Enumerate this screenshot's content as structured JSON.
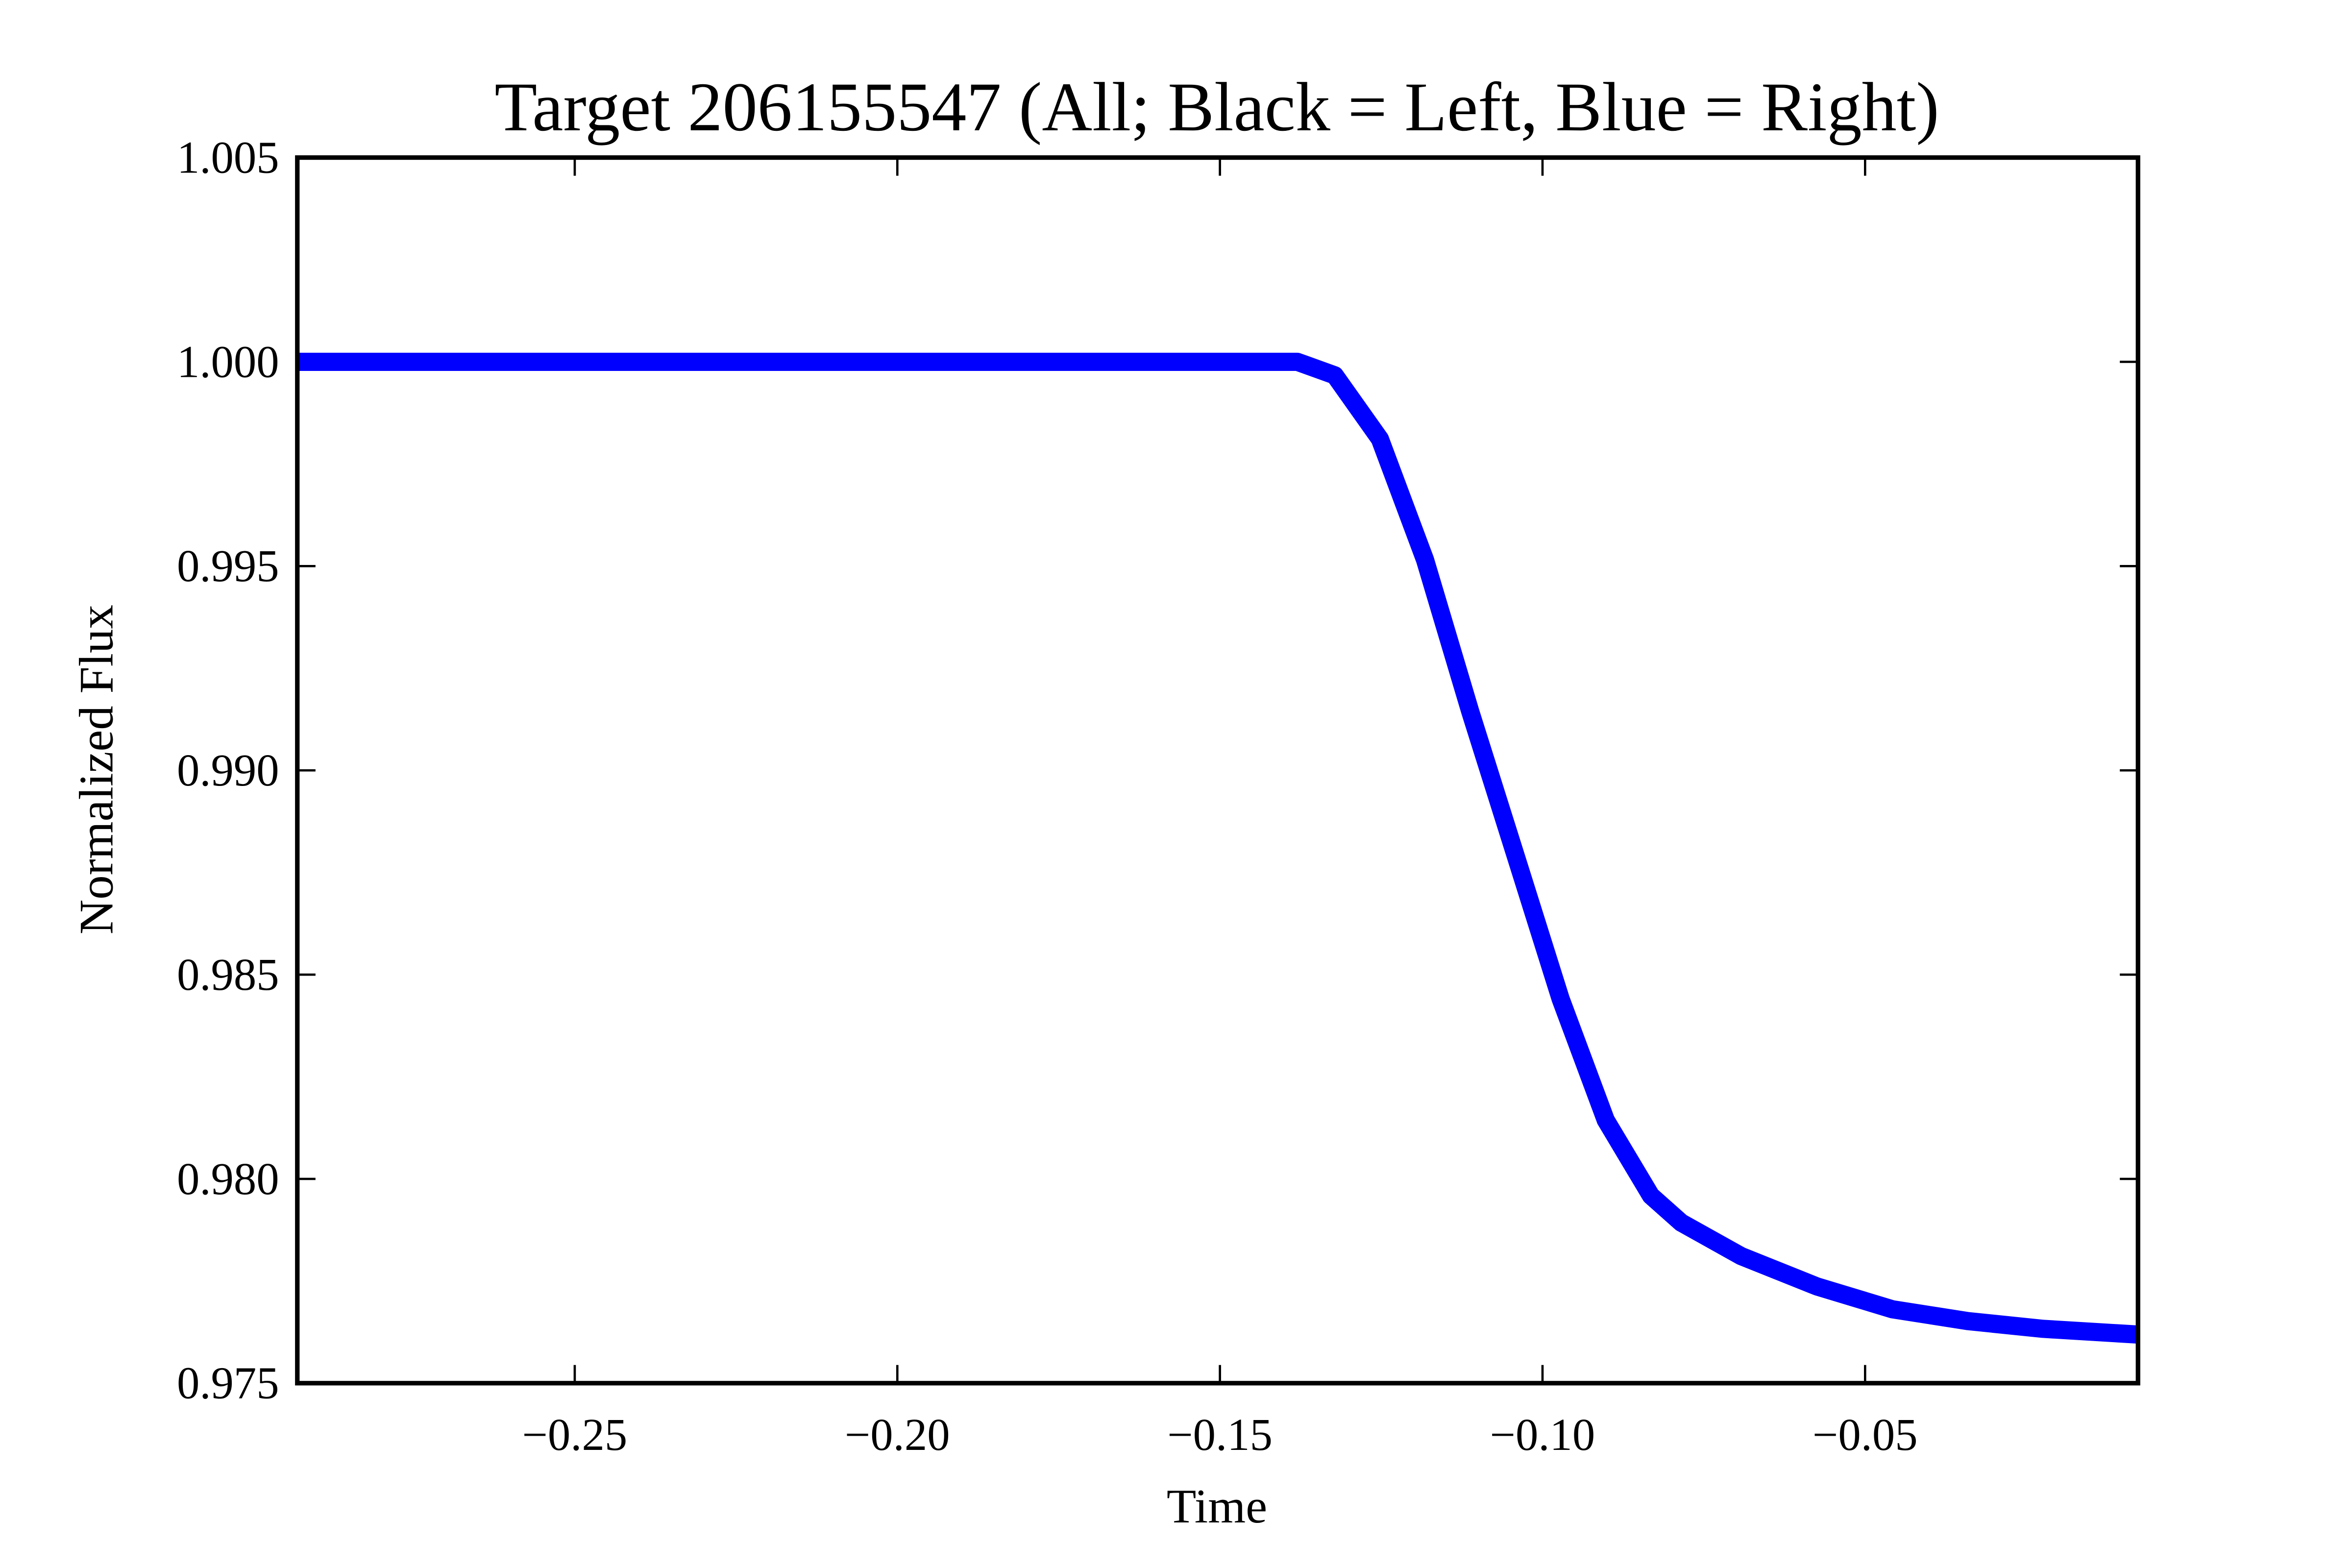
{
  "chart_data": {
    "type": "line",
    "title": "Target 206155547 (All; Black = Left, Blue = Right)",
    "x_label": "Time",
    "y_label": "Normalized Flux",
    "x": [
      -0.293,
      -0.138,
      -0.1322,
      -0.1252,
      -0.1182,
      -0.1112,
      -0.1042,
      -0.0972,
      -0.0902,
      -0.0832,
      -0.0785,
      -0.0692,
      -0.0575,
      -0.0458,
      -0.0341,
      -0.0224,
      -0.0077
    ],
    "series": [
      {
        "name": "Left",
        "color": "#000000",
        "width": 3,
        "values": [
          1.0,
          1.0,
          0.99962,
          0.99798,
          0.99495,
          0.99118,
          0.98765,
          0.98413,
          0.98122,
          0.97945,
          0.97882,
          0.97803,
          0.97731,
          0.97677,
          0.97649,
          0.97631,
          0.97617
        ]
      },
      {
        "name": "Right",
        "color": "#0000ff",
        "width": 12,
        "values": [
          1.0,
          1.0,
          0.99967,
          0.99811,
          0.99515,
          0.99144,
          0.98793,
          0.98441,
          0.98144,
          0.97959,
          0.97893,
          0.97811,
          0.97737,
          0.97681,
          0.97652,
          0.97633,
          0.97619
        ]
      }
    ],
    "xlim": [
      -0.293,
      -0.0077
    ],
    "ylim": [
      0.975,
      1.005
    ],
    "xticks": [
      {
        "value": -0.25,
        "label": "−0.25"
      },
      {
        "value": -0.2,
        "label": "−0.20"
      },
      {
        "value": -0.15,
        "label": "−0.15"
      },
      {
        "value": -0.1,
        "label": "−0.10"
      },
      {
        "value": -0.05,
        "label": "−0.05"
      }
    ],
    "yticks": [
      0.975,
      {
        "value": 0.98,
        "label": "0.980"
      },
      0.985,
      {
        "value": 0.99,
        "label": "0.990"
      },
      0.995,
      {
        "value": 1.0,
        "label": "1.000"
      },
      1.005
    ]
  }
}
